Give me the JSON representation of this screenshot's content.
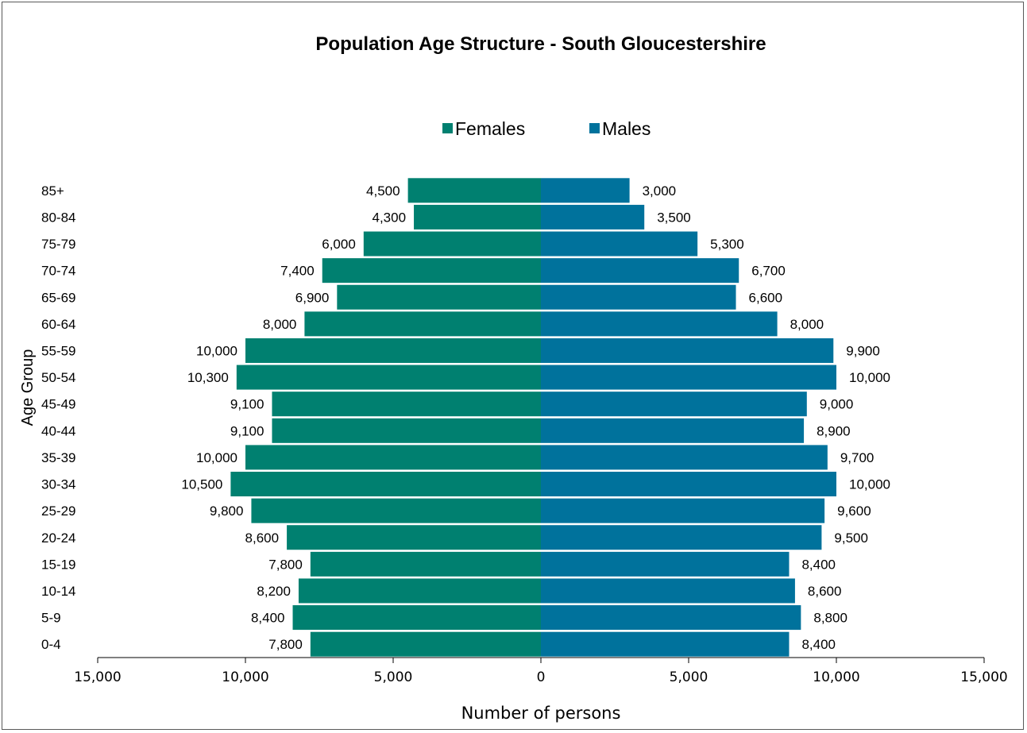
{
  "chart_data": {
    "type": "bar",
    "orientation": "horizontal",
    "layout": "population-pyramid",
    "title": "Population Age Structure - South Gloucestershire",
    "xlabel": "Number of persons",
    "ylabel": "Age Group",
    "xlim": [
      -15000,
      15000
    ],
    "xticks": [
      -15000,
      -10000,
      -5000,
      0,
      5000,
      10000,
      15000
    ],
    "xtick_labels": [
      "15,000",
      "10,000",
      "5,000",
      "0",
      "5,000",
      "10,000",
      "15,000"
    ],
    "legend_position": "top",
    "grid": false,
    "categories": [
      "0-4",
      "5-9",
      "10-14",
      "15-19",
      "20-24",
      "25-29",
      "30-34",
      "35-39",
      "40-44",
      "45-49",
      "50-54",
      "55-59",
      "60-64",
      "65-69",
      "70-74",
      "75-79",
      "80-84",
      "85+"
    ],
    "series": [
      {
        "name": "Females",
        "color": "#008070",
        "side": "left",
        "values": [
          7800,
          8400,
          8200,
          7800,
          8600,
          9800,
          10500,
          10000,
          9100,
          9100,
          10300,
          10000,
          8000,
          6900,
          7400,
          6000,
          4300,
          4500
        ],
        "labels": [
          "7,800",
          "8,400",
          "8,200",
          "7,800",
          "8,600",
          "9,800",
          "10,500",
          "10,000",
          "9,100",
          "9,100",
          "10,300",
          "10,000",
          "8,000",
          "6,900",
          "7,400",
          "6,000",
          "4,300",
          "4,500"
        ]
      },
      {
        "name": "Males",
        "color": "#00729c",
        "side": "right",
        "values": [
          8400,
          8800,
          8600,
          8400,
          9500,
          9600,
          10000,
          9700,
          8900,
          9000,
          10000,
          9900,
          8000,
          6600,
          6700,
          5300,
          3500,
          3000
        ],
        "labels": [
          "8,400",
          "8,800",
          "8,600",
          "8,400",
          "9,500",
          "9,600",
          "10,000",
          "9,700",
          "8,900",
          "9,000",
          "10,000",
          "9,900",
          "8,000",
          "6,600",
          "6,700",
          "5,300",
          "3,500",
          "3,000"
        ]
      }
    ]
  }
}
